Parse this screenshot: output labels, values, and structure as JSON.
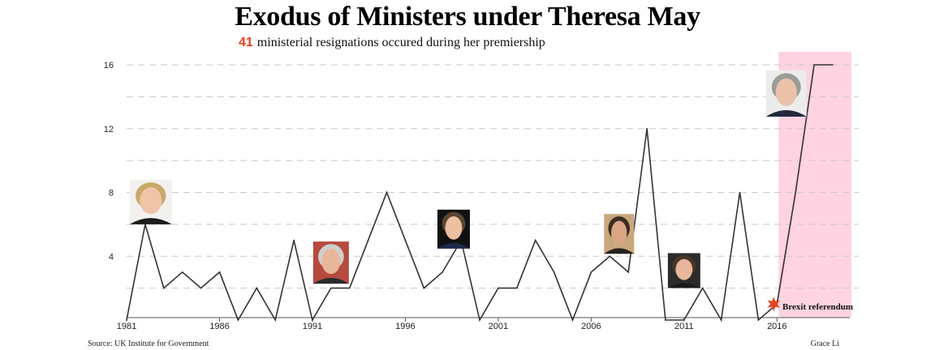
{
  "title": "Exodus of Ministers under Theresa May",
  "subtitle": {
    "count": "41",
    "text": "ministerial resignations occured during her premiership"
  },
  "source": "Source: UK Institute for Government",
  "credit": "Grace Li",
  "colors": {
    "line": "#333333",
    "highlight": "#ffd3e1",
    "accent": "#e8401c",
    "grid": "#c8c8c8"
  },
  "chart_data": {
    "type": "line",
    "title": "Exodus of Ministers under Theresa May",
    "xlabel": "",
    "ylabel": "",
    "xlim": [
      1981,
      2019
    ],
    "ylim": [
      0,
      16
    ],
    "grid": "horizontal dashed",
    "x": [
      1981,
      1982,
      1983,
      1984,
      1985,
      1986,
      1987,
      1988,
      1989,
      1990,
      1991,
      1992,
      1993,
      1994,
      1995,
      1996,
      1997,
      1998,
      1999,
      2000,
      2001,
      2002,
      2003,
      2004,
      2005,
      2006,
      2007,
      2008,
      2009,
      2010,
      2011,
      2012,
      2013,
      2014,
      2015,
      2016,
      2017,
      2018,
      2019
    ],
    "series": [
      {
        "values": [
          0,
          6,
          2,
          3,
          2,
          3,
          0,
          2,
          0,
          5,
          0,
          2,
          2,
          5,
          8,
          5,
          2,
          3,
          5,
          0,
          2,
          2,
          5,
          3,
          0,
          3,
          4,
          3,
          12,
          0,
          0,
          2,
          0,
          8,
          0,
          1,
          8,
          16,
          16
        ]
      }
    ],
    "x_ticks": [
      "1981",
      "1986",
      "1991",
      "1996",
      "2001",
      "2006",
      "2011",
      "2016"
    ],
    "y_ticks": [
      "4",
      "8",
      "12",
      "16"
    ],
    "highlight_range": [
      2016,
      2019
    ],
    "annotations": [
      {
        "label": "Brexit referendum",
        "x": 2016,
        "y": 1,
        "marker": "star"
      }
    ],
    "portraits": [
      {
        "name": "thatcher",
        "x": 1982.3,
        "y": 7.4
      },
      {
        "name": "major",
        "x": 1992,
        "y": 3.6
      },
      {
        "name": "blair",
        "x": 1998.6,
        "y": 5.7
      },
      {
        "name": "brown",
        "x": 2007.5,
        "y": 5.4
      },
      {
        "name": "cameron",
        "x": 2011,
        "y": 3.1
      },
      {
        "name": "may",
        "x": 2016.5,
        "y": 14.2
      }
    ]
  }
}
